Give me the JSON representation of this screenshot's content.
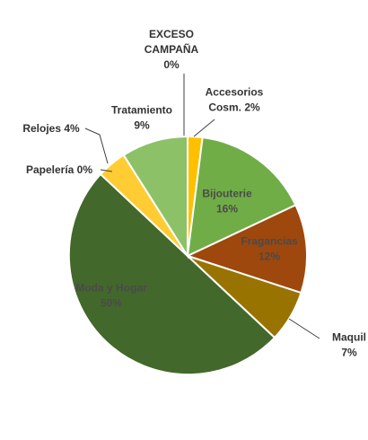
{
  "chart_data": {
    "type": "pie",
    "title": "",
    "start_angle_deg": 0,
    "direction": "clockwise",
    "slices": [
      {
        "name": "Accesorios Cosm.",
        "value": 2,
        "label_lines": [
          "Accesorios",
          "Cosm. 2%"
        ],
        "color": "#FFC000"
      },
      {
        "name": "Bijouterie",
        "value": 16,
        "label_lines": [
          "Bijouterie",
          "16%"
        ],
        "color": "#70AD47"
      },
      {
        "name": "Fragancias",
        "value": 12,
        "label_lines": [
          "Fragancias",
          "12%"
        ],
        "color": "#9E480E"
      },
      {
        "name": "Maquil",
        "value": 7,
        "label_lines": [
          "Maquil",
          "7%"
        ],
        "color": "#997300"
      },
      {
        "name": "Moda y Hogar",
        "value": 50,
        "label_lines": [
          "Moda y Hogar",
          "50%"
        ],
        "color": "#43682B"
      },
      {
        "name": "Papelería",
        "value": 0,
        "label_lines": [
          "Papelería 0%"
        ],
        "color": "#A5A5A5"
      },
      {
        "name": "Relojes",
        "value": 4,
        "label_lines": [
          "Relojes 4%"
        ],
        "color": "#FFCD33"
      },
      {
        "name": "Tratamiento",
        "value": 9,
        "label_lines": [
          "Tratamiento",
          "9%"
        ],
        "color": "#8CC168"
      },
      {
        "name": "EXCESO CAMPAÑA",
        "value": 0,
        "label_lines": [
          "EXCESO",
          "CAMPAÑA",
          "0%"
        ],
        "color": "#5B9BD5"
      }
    ]
  }
}
